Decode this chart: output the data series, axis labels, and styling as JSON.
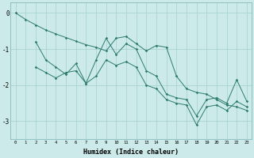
{
  "xlabel": "Humidex (Indice chaleur)",
  "background_color": "#cceaea",
  "grid_color": "#aad4d4",
  "line_color": "#2d7b6e",
  "x_min": -0.5,
  "x_max": 23.5,
  "y_min": -3.5,
  "y_max": 0.3,
  "series1_x": [
    0,
    1,
    2,
    3,
    4,
    5,
    6,
    7,
    8,
    9,
    10,
    11,
    12,
    13,
    14,
    15,
    16,
    17,
    18,
    19,
    20,
    21,
    22,
    23
  ],
  "series1_y": [
    0.0,
    -0.18,
    -0.33,
    -0.47,
    -0.58,
    -0.68,
    -0.78,
    -0.88,
    -0.95,
    -1.05,
    -0.7,
    -0.65,
    -0.85,
    -1.05,
    -0.9,
    -0.95,
    -1.75,
    -2.1,
    -2.2,
    -2.25,
    -2.4,
    -2.55,
    -2.6,
    -2.7
  ],
  "series2_x": [
    2,
    3,
    4,
    5,
    6,
    7,
    8,
    9,
    10,
    11,
    12,
    13,
    14,
    15,
    16,
    17,
    18,
    19,
    20,
    21,
    22,
    23
  ],
  "series2_y": [
    -0.8,
    -1.3,
    -1.5,
    -1.7,
    -1.4,
    -1.95,
    -1.3,
    -0.7,
    -1.15,
    -0.85,
    -1.0,
    -1.6,
    -1.75,
    -2.25,
    -2.35,
    -2.4,
    -2.85,
    -2.4,
    -2.35,
    -2.5,
    -1.85,
    -2.45
  ],
  "series3_x": [
    2,
    3,
    4,
    5,
    6,
    7,
    8,
    9,
    10,
    11,
    12,
    13,
    14,
    15,
    16,
    17,
    18,
    19,
    20,
    21,
    22,
    23
  ],
  "series3_y": [
    -1.5,
    -1.65,
    -1.8,
    -1.65,
    -1.6,
    -1.95,
    -1.75,
    -1.3,
    -1.45,
    -1.35,
    -1.5,
    -2.0,
    -2.1,
    -2.4,
    -2.5,
    -2.55,
    -3.1,
    -2.6,
    -2.55,
    -2.7,
    -2.45,
    -2.6
  ],
  "yticks": [
    0,
    -1,
    -2,
    -3
  ],
  "xticks": [
    0,
    1,
    2,
    3,
    4,
    5,
    6,
    7,
    8,
    9,
    10,
    11,
    12,
    13,
    14,
    15,
    16,
    17,
    18,
    19,
    20,
    21,
    22,
    23
  ]
}
